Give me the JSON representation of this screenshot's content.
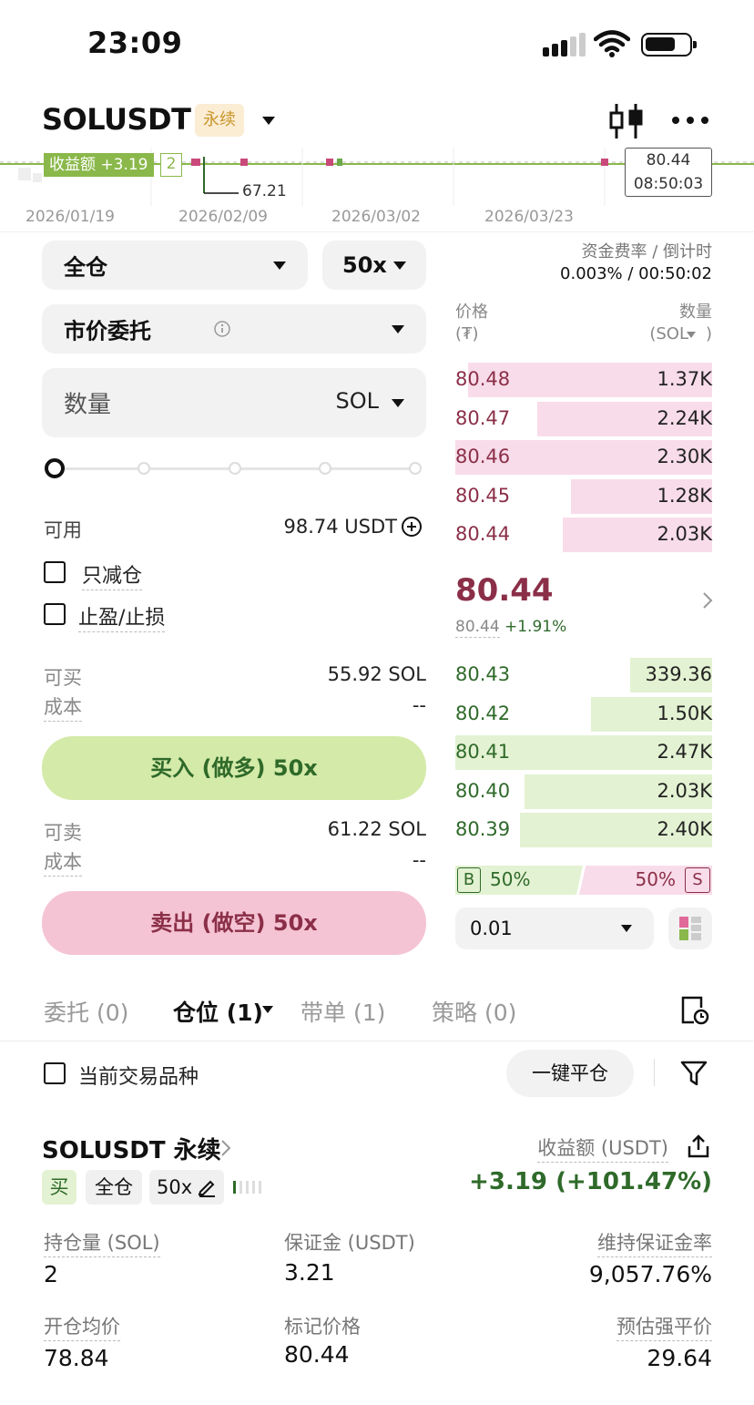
{
  "status_bar": {
    "time": "23:09"
  },
  "header": {
    "symbol": "SOLUSDT",
    "tag": "永续",
    "icon_chart": "candlestick-icon",
    "icon_more": "more-icon"
  },
  "chart": {
    "pnl_overlay": "收益额 +3.19",
    "qty_overlay": "2",
    "low_label": "67.21",
    "price_box": "80.44",
    "time_box": "08:50:03",
    "dates": [
      "2026/01/19",
      "2026/02/09",
      "2026/03/02",
      "2026/03/23"
    ]
  },
  "order_form": {
    "margin_mode": "全仓",
    "leverage": "50x",
    "order_type": "市价委托",
    "qty_placeholder": "数量",
    "qty_unit": "SOL",
    "available_label": "可用",
    "available_value": "98.74 USDT",
    "reduce_only": "只减仓",
    "tp_sl": "止盈/止损",
    "buy_max_label": "可买",
    "buy_max_value": "55.92 SOL",
    "buy_cost_label": "成本",
    "buy_cost_value": "--",
    "buy_button": "买入 (做多) 50x",
    "sell_max_label": "可卖",
    "sell_max_value": "61.22 SOL",
    "sell_cost_label": "成本",
    "sell_cost_value": "--",
    "sell_button": "卖出 (做空) 50x"
  },
  "orderbook": {
    "funding_label": "资金费率 / 倒计时",
    "funding_value": "0.003% / 00:50:02",
    "price_header": "价格",
    "price_unit": "(₮)",
    "qty_header": "数量",
    "qty_unit": "(SOL",
    "asks": [
      {
        "price": "80.48",
        "qty": "1.37K",
        "depth": 0.95
      },
      {
        "price": "80.47",
        "qty": "2.24K",
        "depth": 0.68
      },
      {
        "price": "80.46",
        "qty": "2.30K",
        "depth": 1.0
      },
      {
        "price": "80.45",
        "qty": "1.28K",
        "depth": 0.55
      },
      {
        "price": "80.44",
        "qty": "2.03K",
        "depth": 0.58
      }
    ],
    "last_price": "80.44",
    "mark_price": "80.44",
    "change": "+1.91%",
    "bids": [
      {
        "price": "80.43",
        "qty": "339.36",
        "depth": 0.32
      },
      {
        "price": "80.42",
        "qty": "1.50K",
        "depth": 0.47
      },
      {
        "price": "80.41",
        "qty": "2.47K",
        "depth": 1.0
      },
      {
        "price": "80.40",
        "qty": "2.03K",
        "depth": 0.73
      },
      {
        "price": "80.39",
        "qty": "2.40K",
        "depth": 0.75
      }
    ],
    "buy_ratio_label": "B",
    "buy_ratio": "50%",
    "sell_ratio": "50%",
    "sell_ratio_label": "S",
    "precision": "0.01"
  },
  "tabs": {
    "orders": "委托 (0)",
    "positions": "仓位 (1)",
    "copy": "带单 (1)",
    "strategy": "策略 (0)"
  },
  "filter": {
    "current_only": "当前交易品种",
    "close_all": "一键平仓"
  },
  "position": {
    "symbol": "SOLUSDT 永续",
    "side": "买",
    "mode": "全仓",
    "leverage": "50x",
    "pnl_label": "收益额 (USDT)",
    "pnl_value": "+3.19 (+101.47%)",
    "size_label": "持仓量 (SOL)",
    "size_value": "2",
    "margin_label": "保证金 (USDT)",
    "margin_value": "3.21",
    "mmr_label": "维持保证金率",
    "mmr_value": "9,057.76%",
    "entry_label": "开仓均价",
    "entry_value": "78.84",
    "mark_label": "标记价格",
    "mark_value": "80.44",
    "liq_label": "预估强平价",
    "liq_value": "29.64"
  },
  "colors": {
    "ask_bar": "#f8dce9",
    "bid_bar": "#e3f2d2",
    "buy_button": "#d4eaa9",
    "sell_button": "#f5c4d4",
    "red_text": "#8b2f48",
    "green_text": "#2f6a2a"
  }
}
